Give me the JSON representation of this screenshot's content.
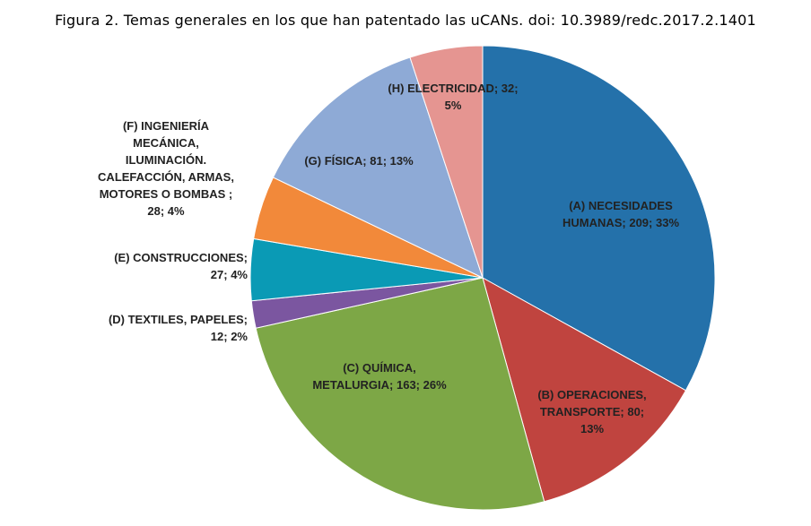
{
  "title": "Figura 2. Temas generales en los que han patentado las uCANs. doi: 10.3989/redc.2017.2.1401",
  "chart_data": {
    "type": "pie",
    "start_angle_deg": 0,
    "direction": "clockwise",
    "legend": "none",
    "slices": [
      {
        "category": "(A) NECESIDADES HUMANAS",
        "value": 209,
        "percent": 33,
        "color": "#2471aa",
        "label": "(A) NECESIDADES\nHUMANAS;  209; 33%"
      },
      {
        "category": "(B) OPERACIONES, TRANSPORTE",
        "value": 80,
        "percent": 13,
        "color": "#c0443f",
        "label": "(B) OPERACIONES,\nTRANSPORTE;  80;\n13%"
      },
      {
        "category": "(C) QUÍMICA, METALURGIA",
        "value": 163,
        "percent": 26,
        "color": "#7da746",
        "label": "(C) QUÍMICA,\nMETALURGIA;  163; 26%"
      },
      {
        "category": "(D) TEXTILES, PAPELES",
        "value": 12,
        "percent": 2,
        "color": "#7b56a0",
        "label": "(D) TEXTILES,  PAPELES;\n12; 2%"
      },
      {
        "category": "(E) CONSTRUCCIONES",
        "value": 27,
        "percent": 4,
        "color": "#0a9ab5",
        "label": "(E) CONSTRUCCIONES;\n27; 4%"
      },
      {
        "category": "(F) INGENIERÍA MECÁNICA, ILUMINACIÓN. CALEFACCIÓN, ARMAS, MOTORES O BOMBAS",
        "value": 28,
        "percent": 4,
        "color": "#f2893a",
        "label": "(F) INGENIERÍA\nMECÁNICA,\nILUMINACIÓN.\nCALEFACCIÓN, ARMAS,\nMOTORES  O BOMBAS  ;\n28; 4%"
      },
      {
        "category": "(G) FÍSICA",
        "value": 81,
        "percent": 13,
        "color": "#8eaad6",
        "label": "(G) FÍSICA; 81; 13%"
      },
      {
        "category": "(H) ELECTRICIDAD",
        "value": 32,
        "percent": 5,
        "color": "#e59591",
        "label": "(H) ELECTRICIDAD;  32;\n5%"
      }
    ]
  }
}
